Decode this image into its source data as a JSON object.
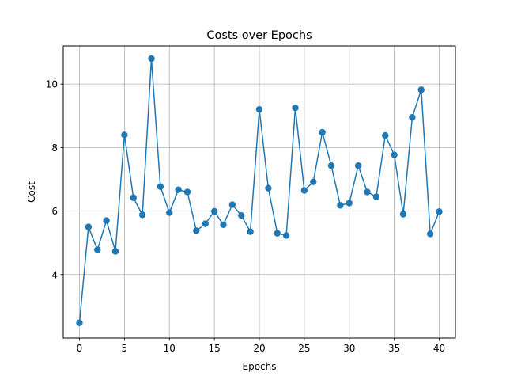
{
  "chart_data": {
    "type": "line",
    "title": "Costs over Epochs",
    "xlabel": "Epochs",
    "ylabel": "Cost",
    "xlim": [
      -1.8,
      41.8
    ],
    "ylim": [
      2.0,
      11.2
    ],
    "xticks": [
      0,
      5,
      10,
      15,
      20,
      25,
      30,
      35,
      40
    ],
    "yticks": [
      4,
      6,
      8,
      10
    ],
    "grid": true,
    "series": [
      {
        "color": "#1f77b4",
        "marker": "circle",
        "x": [
          0,
          1,
          2,
          3,
          4,
          5,
          6,
          7,
          8,
          9,
          10,
          11,
          12,
          13,
          14,
          15,
          16,
          17,
          18,
          19,
          20,
          21,
          22,
          23,
          24,
          25,
          26,
          27,
          28,
          29,
          30,
          31,
          32,
          33,
          34,
          35,
          36,
          37,
          38,
          39,
          40
        ],
        "y": [
          2.48,
          5.5,
          4.78,
          5.7,
          4.73,
          8.4,
          6.42,
          5.88,
          10.8,
          6.77,
          5.95,
          6.67,
          6.6,
          5.38,
          5.6,
          5.99,
          5.57,
          6.2,
          5.86,
          5.35,
          9.2,
          6.72,
          5.3,
          5.23,
          9.25,
          6.65,
          6.92,
          8.48,
          7.43,
          6.18,
          6.25,
          7.43,
          6.6,
          6.45,
          8.38,
          7.77,
          5.9,
          8.95,
          9.82,
          5.28,
          5.98
        ]
      }
    ]
  }
}
